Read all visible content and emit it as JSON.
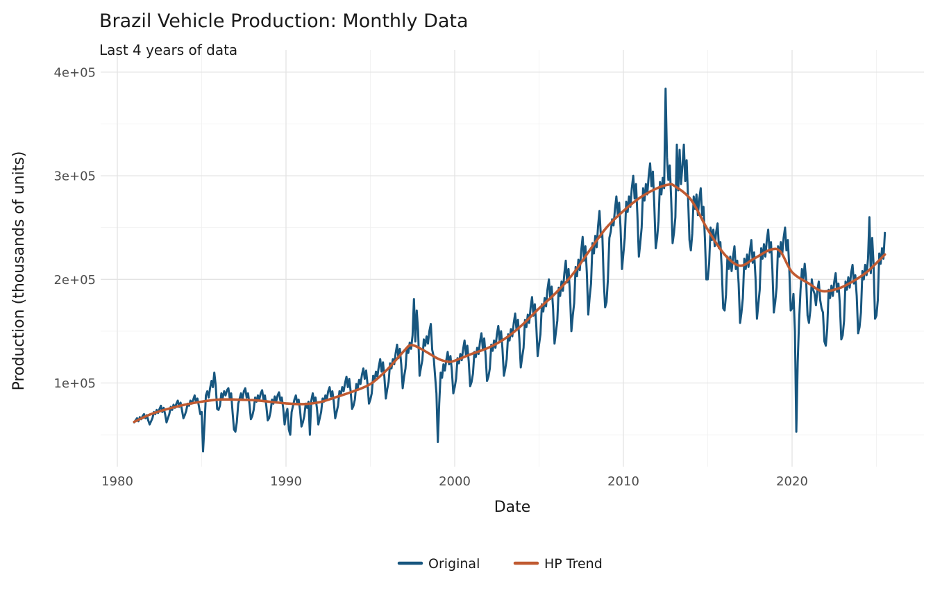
{
  "page": {
    "background": "#ffffff"
  },
  "header": {
    "title": "Brazil Vehicle Production: Monthly Data",
    "subtitle": "Last 4 years of data"
  },
  "axes": {
    "x_title": "Date",
    "y_title": "Production (thousands of units)"
  },
  "legend": {
    "items": [
      {
        "label": "Original",
        "color": "#17567F"
      },
      {
        "label": "HP Trend",
        "color": "#C05A31"
      }
    ]
  },
  "chart_data": {
    "type": "line",
    "title": "Brazil Vehicle Production: Monthly Data",
    "subtitle": "Last 4 years of data",
    "xlabel": "Date",
    "ylabel": "Production (thousands of units)",
    "xlim": [
      1979.0,
      2027.8
    ],
    "ylim": [
      19000,
      421000
    ],
    "grid": true,
    "legend_position": "bottom",
    "x_ticks": [
      1980,
      1990,
      2000,
      2010,
      2020
    ],
    "x_minor_ticks": [
      1985,
      1995,
      2005,
      2015,
      2025
    ],
    "y_ticks": [
      {
        "value": 100000,
        "label": "1e+05"
      },
      {
        "value": 200000,
        "label": "2e+05"
      },
      {
        "value": 300000,
        "label": "3e+05"
      },
      {
        "value": 400000,
        "label": "4e+05"
      }
    ],
    "y_minor_ticks": [
      50000,
      150000,
      250000,
      350000
    ],
    "series": [
      {
        "name": "Original",
        "color": "#17567F",
        "stroke_width": 3,
        "start_year": 1981,
        "frequency": "monthly",
        "values": [
          62000,
          64000,
          66000,
          63000,
          67000,
          65000,
          68000,
          70000,
          66000,
          69000,
          64000,
          60000,
          63000,
          66000,
          72000,
          70000,
          74000,
          71000,
          75000,
          78000,
          72000,
          76000,
          70000,
          62000,
          66000,
          70000,
          77000,
          74000,
          79000,
          76000,
          80000,
          83000,
          77000,
          81000,
          74000,
          66000,
          69000,
          73000,
          80000,
          78000,
          83000,
          80000,
          84000,
          88000,
          81000,
          85000,
          78000,
          70000,
          72000,
          34000,
          60000,
          88000,
          92000,
          86000,
          95000,
          102000,
          96000,
          110000,
          98000,
          75000,
          74000,
          78000,
          90000,
          86000,
          92000,
          88000,
          93000,
          95000,
          85000,
          90000,
          72000,
          55000,
          53000,
          62000,
          80000,
          85000,
          90000,
          84000,
          92000,
          95000,
          86000,
          90000,
          80000,
          65000,
          68000,
          74000,
          86000,
          82000,
          88000,
          84000,
          90000,
          93000,
          84000,
          88000,
          78000,
          64000,
          66000,
          72000,
          84000,
          80000,
          87000,
          82000,
          88000,
          91000,
          83000,
          86000,
          76000,
          60000,
          70000,
          75000,
          55000,
          50000,
          72000,
          78000,
          84000,
          88000,
          80000,
          84000,
          74000,
          58000,
          62000,
          68000,
          80000,
          76000,
          82000,
          50000,
          83000,
          90000,
          82000,
          86000,
          76000,
          60000,
          66000,
          72000,
          85000,
          82000,
          88000,
          84000,
          92000,
          96000,
          87000,
          92000,
          82000,
          66000,
          72000,
          78000,
          92000,
          89000,
          96000,
          92000,
          100000,
          106000,
          96000,
          104000,
          92000,
          75000,
          78000,
          84000,
          99000,
          95000,
          103000,
          99000,
          108000,
          114000,
          104000,
          112000,
          99000,
          80000,
          84000,
          90000,
          107000,
          103000,
          111000,
          106000,
          116000,
          123000,
          111000,
          120000,
          106000,
          85000,
          94000,
          101000,
          119000,
          114000,
          123000,
          118000,
          129000,
          137000,
          124000,
          133000,
          118000,
          95000,
          106000,
          114000,
          134000,
          129000,
          139000,
          133000,
          146000,
          181000,
          140000,
          170000,
          150000,
          107000,
          115000,
          122000,
          142000,
          136000,
          145000,
          138000,
          150000,
          157000,
          132000,
          126000,
          108000,
          90000,
          43000,
          80000,
          110000,
          105000,
          118000,
          112000,
          122000,
          130000,
          118000,
          126000,
          112000,
          90000,
          96000,
          104000,
          124000,
          119000,
          128000,
          122000,
          133000,
          141000,
          127000,
          136000,
          121000,
          97000,
          101000,
          109000,
          130000,
          125000,
          134000,
          128000,
          140000,
          148000,
          133000,
          143000,
          127000,
          102000,
          106000,
          114000,
          137000,
          131000,
          141000,
          134000,
          147000,
          155000,
          140000,
          150000,
          133000,
          107000,
          114000,
          123000,
          147000,
          141000,
          152000,
          145000,
          158000,
          167000,
          151000,
          161000,
          143000,
          115000,
          125000,
          134000,
          161000,
          154000,
          166000,
          158000,
          173000,
          183000,
          165000,
          176000,
          157000,
          126000,
          137000,
          147000,
          176000,
          169000,
          182000,
          174000,
          190000,
          200000,
          181000,
          193000,
          172000,
          138000,
          149000,
          160000,
          192000,
          184000,
          198000,
          189000,
          206000,
          218000,
          197000,
          210000,
          187000,
          150000,
          165000,
          177000,
          212000,
          203000,
          219000,
          209000,
          228000,
          241000,
          218000,
          232000,
          207000,
          166000,
          183000,
          196000,
          235000,
          225000,
          242000,
          231000,
          252000,
          266000,
          241000,
          245000,
          200000,
          173000,
          178000,
          200000,
          240000,
          246000,
          258000,
          252000,
          268000,
          280000,
          262000,
          274000,
          250000,
          210000,
          225000,
          240000,
          275000,
          265000,
          280000,
          270000,
          288000,
          300000,
          278000,
          292000,
          262000,
          222000,
          235000,
          250000,
          288000,
          276000,
          292000,
          282000,
          300000,
          312000,
          290000,
          304000,
          272000,
          230000,
          240000,
          256000,
          294000,
          282000,
          298000,
          288000,
          384000,
          318000,
          296000,
          310000,
          278000,
          235000,
          245000,
          260000,
          330000,
          286000,
          325000,
          292000,
          310000,
          330000,
          295000,
          315000,
          280000,
          238000,
          228000,
          244000,
          280000,
          268000,
          282000,
          262000,
          278000,
          288000,
          262000,
          270000,
          240000,
          200000,
          200000,
          215000,
          250000,
          238000,
          248000,
          232000,
          246000,
          254000,
          230000,
          236000,
          210000,
          172000,
          170000,
          185000,
          222000,
          210000,
          222000,
          208000,
          222000,
          232000,
          210000,
          218000,
          196000,
          158000,
          168000,
          182000,
          220000,
          210000,
          224000,
          212000,
          228000,
          238000,
          216000,
          226000,
          202000,
          162000,
          176000,
          190000,
          230000,
          220000,
          234000,
          222000,
          238000,
          248000,
          226000,
          236000,
          210000,
          168000,
          178000,
          192000,
          232000,
          222000,
          236000,
          224000,
          240000,
          250000,
          228000,
          238000,
          212000,
          170000,
          172000,
          186000,
          150000,
          53000,
          120000,
          160000,
          190000,
          210000,
          200000,
          215000,
          200000,
          165000,
          158000,
          170000,
          200000,
          190000,
          186000,
          175000,
          190000,
          198000,
          180000,
          172000,
          168000,
          140000,
          136000,
          152000,
          190000,
          182000,
          194000,
          184000,
          198000,
          206000,
          188000,
          196000,
          176000,
          142000,
          146000,
          160000,
          198000,
          190000,
          202000,
          192000,
          206000,
          214000,
          196000,
          204000,
          184000,
          148000,
          154000,
          168000,
          208000,
          200000,
          214000,
          204000,
          220000,
          260000,
          206000,
          240000,
          215000,
          162000,
          165000,
          180000,
          225000,
          215000,
          230000,
          220000,
          245000
        ]
      },
      {
        "name": "HP Trend",
        "color": "#C05A31",
        "stroke_width": 3.6,
        "points": [
          [
            1981.0,
            62500
          ],
          [
            1982,
            70000
          ],
          [
            1983,
            75000
          ],
          [
            1984,
            79000
          ],
          [
            1985,
            82000
          ],
          [
            1986,
            84000
          ],
          [
            1987,
            84000
          ],
          [
            1988,
            83500
          ],
          [
            1989,
            82000
          ],
          [
            1990,
            80300
          ],
          [
            1991,
            79600
          ],
          [
            1992,
            81500
          ],
          [
            1993,
            86500
          ],
          [
            1994,
            92000
          ],
          [
            1995,
            99000
          ],
          [
            1996,
            113000
          ],
          [
            1997,
            131000
          ],
          [
            1997.4,
            136500
          ],
          [
            1998,
            133000
          ],
          [
            1999,
            123500
          ],
          [
            1999.6,
            120500
          ],
          [
            2000,
            121500
          ],
          [
            2001,
            128000
          ],
          [
            2002,
            134000
          ],
          [
            2003,
            143000
          ],
          [
            2004,
            156000
          ],
          [
            2005,
            172000
          ],
          [
            2006,
            187000
          ],
          [
            2007,
            205000
          ],
          [
            2008,
            228000
          ],
          [
            2009,
            250000
          ],
          [
            2010,
            266000
          ],
          [
            2011,
            279000
          ],
          [
            2012,
            288000
          ],
          [
            2012.7,
            291500
          ],
          [
            2013,
            290500
          ],
          [
            2014,
            277000
          ],
          [
            2015,
            248000
          ],
          [
            2016,
            224000
          ],
          [
            2016.9,
            213300
          ],
          [
            2017.8,
            220500
          ],
          [
            2018.7,
            228500
          ],
          [
            2019.3,
            227000
          ],
          [
            2020,
            207000
          ],
          [
            2021,
            196000
          ],
          [
            2021.8,
            188600
          ],
          [
            2022.8,
            191500
          ],
          [
            2023.7,
            199000
          ],
          [
            2024.5,
            208000
          ],
          [
            2025.5,
            224000
          ]
        ]
      }
    ]
  },
  "style": {
    "grid_major_color": "#e3e3e3",
    "grid_minor_color": "#f0f0f0",
    "tick_text_color": "#4d4d4d"
  }
}
